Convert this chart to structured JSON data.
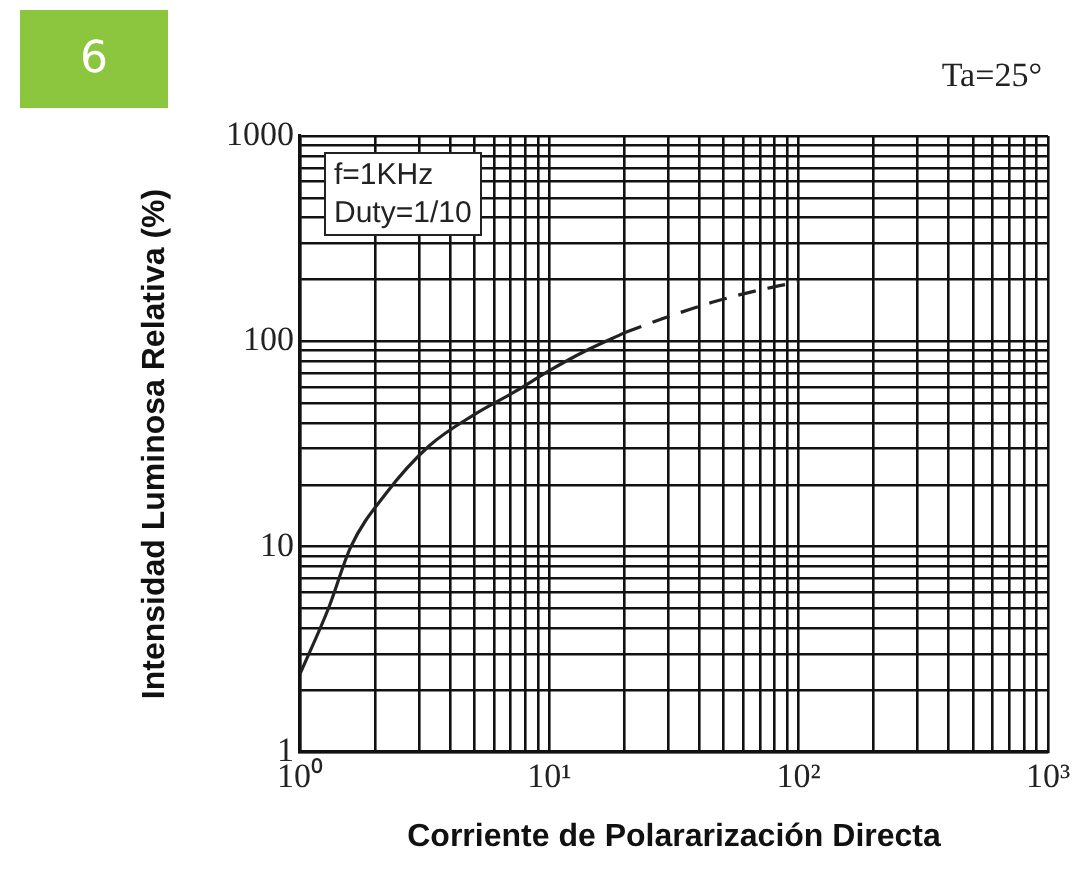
{
  "chart_data": {
    "type": "line",
    "xlabel": "Corriente de Polararización Directa",
    "ylabel": "Intensidad Luminosa Relativa (%)",
    "log": "xy",
    "grid": true,
    "legend": false,
    "marker": "none",
    "xlim": [
      1,
      1000
    ],
    "ylim": [
      1,
      1000
    ],
    "xticks": [
      {
        "value": 1,
        "label": "10⁰"
      },
      {
        "value": 2,
        "label": null
      },
      {
        "value": 3,
        "label": null
      },
      {
        "value": 4,
        "label": null
      },
      {
        "value": 5,
        "label": null
      },
      {
        "value": 6,
        "label": null
      },
      {
        "value": 7,
        "label": null
      },
      {
        "value": 8,
        "label": null
      },
      {
        "value": 9,
        "label": null
      },
      {
        "value": 10,
        "label": "10¹"
      },
      {
        "value": 20,
        "label": null
      },
      {
        "value": 30,
        "label": null
      },
      {
        "value": 40,
        "label": null
      },
      {
        "value": 50,
        "label": null
      },
      {
        "value": 60,
        "label": null
      },
      {
        "value": 70,
        "label": null
      },
      {
        "value": 80,
        "label": null
      },
      {
        "value": 90,
        "label": null
      },
      {
        "value": 100,
        "label": "10²"
      },
      {
        "value": 200,
        "label": null
      },
      {
        "value": 300,
        "label": null
      },
      {
        "value": 400,
        "label": null
      },
      {
        "value": 500,
        "label": null
      },
      {
        "value": 600,
        "label": null
      },
      {
        "value": 700,
        "label": null
      },
      {
        "value": 800,
        "label": null
      },
      {
        "value": 900,
        "label": null
      },
      {
        "value": 1000,
        "label": "10³"
      }
    ],
    "yticks": [
      1,
      {
        "value": 2,
        "label": null
      },
      {
        "value": 3,
        "label": null
      },
      {
        "value": 4,
        "label": null
      },
      {
        "value": 5,
        "label": null
      },
      {
        "value": 6,
        "label": null
      },
      {
        "value": 7,
        "label": null
      },
      {
        "value": 8,
        "label": null
      },
      {
        "value": 9,
        "label": null
      },
      10,
      {
        "value": 20,
        "label": null
      },
      {
        "value": 30,
        "label": null
      },
      {
        "value": 40,
        "label": null
      },
      {
        "value": 50,
        "label": null
      },
      {
        "value": 60,
        "label": null
      },
      {
        "value": 70,
        "label": null
      },
      {
        "value": 80,
        "label": null
      },
      {
        "value": 90,
        "label": null
      },
      100,
      {
        "value": 200,
        "label": null
      },
      {
        "value": 300,
        "label": null
      },
      {
        "value": 400,
        "label": null
      },
      {
        "value": 500,
        "label": null
      },
      {
        "value": 600,
        "label": null
      },
      {
        "value": 700,
        "label": null
      },
      {
        "value": 800,
        "label": null
      },
      {
        "value": 900,
        "label": null
      },
      1000
    ],
    "series": [
      {
        "color": "#222222",
        "line_style": "solid",
        "x": [
          1,
          1.3,
          1.6,
          2.2,
          3.3,
          5,
          7.3,
          10,
          14,
          20
        ],
        "values": [
          2.4,
          5,
          10,
          18,
          31,
          44,
          57,
          72,
          90,
          110
        ]
      },
      {
        "color": "#222222",
        "line_style": "dashed",
        "x": [
          20,
          28,
          45,
          70,
          100
        ],
        "values": [
          110,
          128,
          155,
          178,
          195
        ]
      }
    ],
    "annotations": [
      "6",
      "Ta=25°",
      "f=1KHz\nDuty=1/10"
    ]
  }
}
